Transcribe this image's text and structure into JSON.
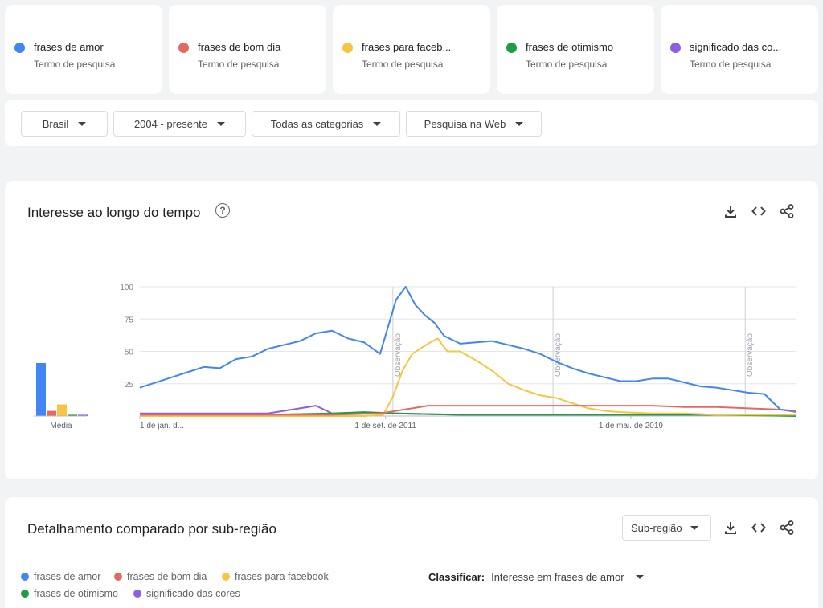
{
  "colors": {
    "blue": "#4285f4",
    "red": "#e46962",
    "yellow": "#f6c542",
    "green": "#1e9d46",
    "purple": "#8e5fe3"
  },
  "search_terms": [
    {
      "label": "frases de amor",
      "sub": "Termo de pesquisa",
      "color": "#4285f4"
    },
    {
      "label": "frases de bom dia",
      "sub": "Termo de pesquisa",
      "color": "#e46962"
    },
    {
      "label": "frases para faceb...",
      "sub": "Termo de pesquisa",
      "color": "#f6c542"
    },
    {
      "label": "frases de otimismo",
      "sub": "Termo de pesquisa",
      "color": "#1e9d46"
    },
    {
      "label": "significado das co...",
      "sub": "Termo de pesquisa",
      "color": "#8e5fe3"
    }
  ],
  "filters": {
    "region": "Brasil",
    "period": "2004 - presente",
    "category": "Todas as categorias",
    "search_type": "Pesquisa na Web"
  },
  "interest_over_time": {
    "title": "Interesse ao longo do tempo",
    "help_icon": "?"
  },
  "chart_data": {
    "type": "line",
    "title": "Interesse ao longo do tempo",
    "y_ticks": [
      "100",
      "75",
      "50",
      "25"
    ],
    "ylim": [
      0,
      100
    ],
    "x_tick_labels": [
      "1 de jan. d...",
      "1 de set. de 2011",
      "1 de mai. de 2019"
    ],
    "annotations": [
      "Observação",
      "Observação",
      "Observação"
    ],
    "average_label": "Média",
    "averages": [
      {
        "name": "frases de amor",
        "value": 41
      },
      {
        "name": "frases de bom dia",
        "value": 4
      },
      {
        "name": "frases para facebook",
        "value": 9
      },
      {
        "name": "frases de otimismo",
        "value": 1
      },
      {
        "name": "significado das cores",
        "value": 1
      }
    ],
    "x_range": [
      2004.0,
      2024.5
    ],
    "observation_years": [
      2011.9,
      2016.9,
      2022.9
    ],
    "series": [
      {
        "name": "frases de amor",
        "color": "#4285f4",
        "x": [
          2004.0,
          2004.5,
          2005.0,
          2005.5,
          2006.0,
          2006.5,
          2007.0,
          2007.5,
          2008.0,
          2008.5,
          2009.0,
          2009.5,
          2010.0,
          2010.5,
          2011.0,
          2011.5,
          2012.0,
          2012.3,
          2012.6,
          2012.9,
          2013.2,
          2013.5,
          2014.0,
          2014.5,
          2015.0,
          2015.5,
          2016.0,
          2016.5,
          2017.0,
          2017.5,
          2018.0,
          2018.5,
          2019.0,
          2019.5,
          2020.0,
          2020.5,
          2021.0,
          2021.5,
          2022.0,
          2022.5,
          2023.0,
          2023.5,
          2024.0,
          2024.5
        ],
        "values": [
          22,
          26,
          30,
          34,
          38,
          37,
          44,
          46,
          52,
          55,
          58,
          64,
          66,
          60,
          57,
          48,
          90,
          100,
          86,
          78,
          72,
          62,
          56,
          57,
          58,
          55,
          52,
          48,
          42,
          37,
          33,
          30,
          27,
          27,
          29,
          29,
          26,
          23,
          22,
          20,
          18,
          17,
          5,
          4
        ]
      },
      {
        "name": "frases de bom dia",
        "color": "#e46962",
        "x": [
          2004.0,
          2006.0,
          2008.0,
          2010.0,
          2011.5,
          2012.0,
          2013.0,
          2014.0,
          2015.0,
          2016.0,
          2017.0,
          2018.0,
          2019.0,
          2020.0,
          2021.0,
          2022.0,
          2023.0,
          2024.0,
          2024.5
        ],
        "values": [
          1,
          1,
          1,
          1,
          2,
          4,
          8,
          8,
          8,
          8,
          8,
          8,
          8,
          8,
          7,
          7,
          6,
          5,
          3
        ]
      },
      {
        "name": "frases para facebook",
        "color": "#f6c542",
        "x": [
          2004.0,
          2011.0,
          2011.6,
          2011.9,
          2012.2,
          2012.5,
          2013.0,
          2013.3,
          2013.6,
          2014.0,
          2014.5,
          2015.0,
          2015.5,
          2016.0,
          2016.5,
          2017.0,
          2017.5,
          2018.0,
          2018.5,
          2019.0,
          2020.0,
          2021.0,
          2022.0,
          2023.0,
          2024.0,
          2024.5
        ],
        "values": [
          0,
          0,
          1,
          15,
          35,
          48,
          56,
          60,
          50,
          50,
          43,
          35,
          25,
          20,
          16,
          14,
          10,
          6,
          4,
          3,
          2,
          2,
          1,
          1,
          1,
          1
        ]
      },
      {
        "name": "frases de otimismo",
        "color": "#1e9d46",
        "x": [
          2004.0,
          2008.0,
          2010.0,
          2011.0,
          2012.0,
          2014.0,
          2016.0,
          2018.0,
          2020.0,
          2022.0,
          2024.5
        ],
        "values": [
          1,
          1,
          2,
          3,
          2,
          1,
          1,
          1,
          1,
          1,
          0
        ]
      },
      {
        "name": "significado das cores",
        "color": "#8e5fe3",
        "x": [
          2004.0,
          2006.0,
          2008.0,
          2009.5,
          2010.0,
          2011.0,
          2012.0,
          2014.0,
          2016.0,
          2018.0,
          2020.0,
          2022.0,
          2024.5
        ],
        "values": [
          2,
          2,
          2,
          8,
          2,
          2,
          2,
          1,
          1,
          1,
          1,
          1,
          1
        ]
      }
    ]
  },
  "subregion": {
    "title": "Detalhamento comparado por sub-região",
    "select_value": "Sub-região",
    "legend": [
      {
        "label": "frases de amor",
        "color": "#4285f4"
      },
      {
        "label": "frases de bom dia",
        "color": "#e46962"
      },
      {
        "label": "frases para facebook",
        "color": "#f6c542"
      },
      {
        "label": "frases de otimismo",
        "color": "#1e9d46"
      },
      {
        "label": "significado das cores",
        "color": "#8e5fe3"
      }
    ],
    "classify_label": "Classificar:",
    "classify_value": "Interesse em frases de amor"
  },
  "icons": [
    "download-icon",
    "embed-icon",
    "share-icon",
    "help-icon",
    "caret-down-icon"
  ]
}
